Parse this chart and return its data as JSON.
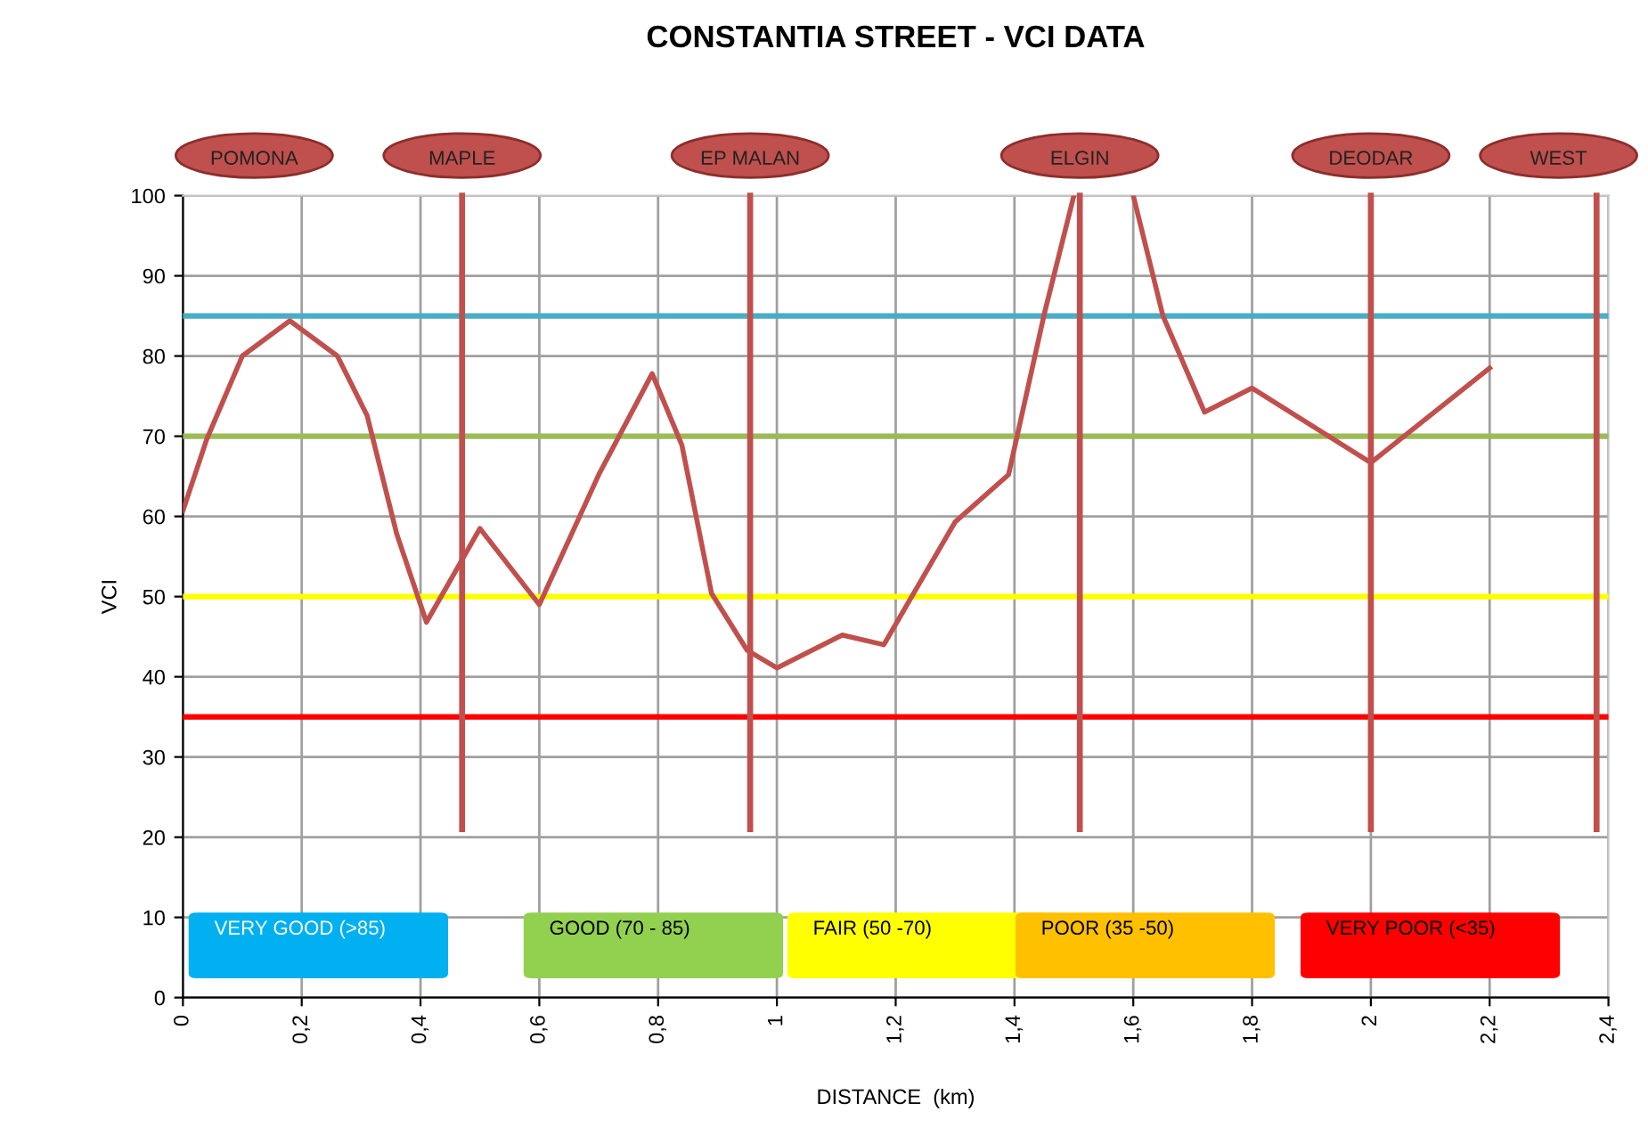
{
  "chart_data": {
    "type": "line",
    "title": "CONSTANTIA STREET - VCI DATA",
    "xlabel": "DISTANCE  (km)",
    "ylabel": "VCI",
    "x": [
      0,
      0.04,
      0.1,
      0.18,
      0.26,
      0.31,
      0.36,
      0.41,
      0.46,
      0.5,
      0.6,
      0.7,
      0.79,
      0.84,
      0.89,
      0.95,
      1.0,
      1.11,
      1.18,
      1.3,
      1.39,
      1.45,
      1.5,
      1.55,
      1.6,
      1.65,
      1.72,
      1.8,
      2.0,
      2.2
    ],
    "series": [
      {
        "color": "#c0504d",
        "values": [
          60.7,
          69.6,
          80,
          84.4,
          80,
          72.6,
          57.8,
          46.8,
          53.3,
          58.5,
          49,
          65.2,
          77.8,
          68.9,
          50.4,
          43.3,
          41.1,
          45.2,
          44,
          59.3,
          65.2,
          85.2,
          100,
          null,
          100,
          85,
          73,
          76,
          66.7,
          78.5
        ]
      }
    ],
    "xlim": [
      0,
      2.4
    ],
    "ylim": [
      0,
      100
    ],
    "xticks": [
      0,
      {
        "value": 0.2,
        "label": "0,2"
      },
      {
        "value": 0.4,
        "label": "0,4"
      },
      {
        "value": 0.6,
        "label": "0,6"
      },
      {
        "value": 0.8,
        "label": "0,8"
      },
      1,
      {
        "value": 1.2,
        "label": "1,2"
      },
      {
        "value": 1.4,
        "label": "1,4"
      },
      {
        "value": 1.6,
        "label": "1,6"
      },
      {
        "value": 1.8,
        "label": "1,8"
      },
      2,
      {
        "value": 2.2,
        "label": "2,2"
      },
      {
        "value": 2.4,
        "label": "2,4"
      }
    ],
    "yticks": [
      0,
      10,
      20,
      30,
      40,
      50,
      60,
      70,
      80,
      90,
      100
    ],
    "grid": true,
    "marker": "none",
    "line_style": "solid",
    "ref_lines": [
      {
        "axis": "y",
        "value": 85,
        "color": "#4bacc6"
      },
      {
        "axis": "y",
        "value": 70,
        "color": "#9bbb59"
      },
      {
        "axis": "y",
        "value": 50,
        "color": "#ffff00"
      },
      {
        "axis": "y",
        "value": 35,
        "color": "#ff0000"
      },
      {
        "axis": "x",
        "value": 0.47,
        "color": "#c0504d"
      },
      {
        "axis": "x",
        "value": 0.955,
        "color": "#c0504d"
      },
      {
        "axis": "x",
        "value": 1.51,
        "color": "#c0504d"
      },
      {
        "axis": "x",
        "value": 2.0,
        "color": "#c0504d"
      },
      {
        "axis": "x",
        "value": 2.38,
        "color": "#c0504d"
      }
    ],
    "annotations": [
      "POMONA",
      {
        "text": "MAPLE",
        "x": 0.47,
        "y": 100
      },
      {
        "text": "EP MALAN",
        "x": 0.955,
        "y": 100
      },
      {
        "text": "ELGIN",
        "x": 1.51,
        "y": 100
      },
      {
        "text": "DEODAR",
        "x": 2.0,
        "y": 100
      },
      {
        "text": "WEST",
        "x": 2.38,
        "y": 100
      },
      "VERY GOOD (>85)",
      "GOOD (70 - 85)",
      "FAIR (50 -70)",
      "POOR (35 -50)",
      "VERY POOR (<35)"
    ]
  }
}
